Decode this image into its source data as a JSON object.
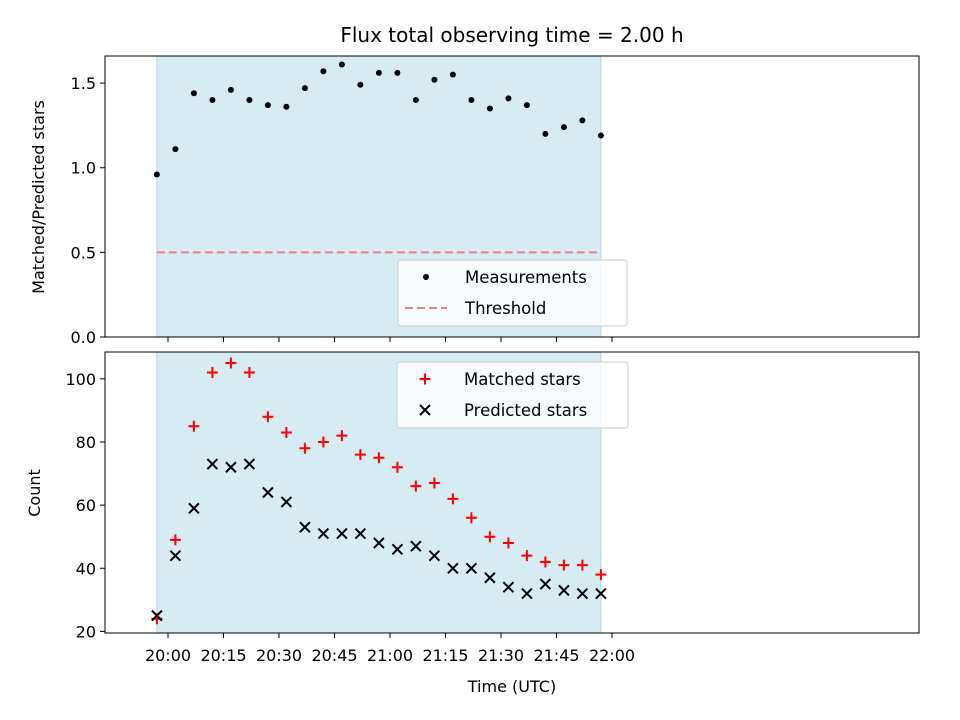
{
  "title": "Flux total observing time = 2.00 h",
  "colors": {
    "shade": "#add8e6",
    "measurement": "#000000",
    "threshold": "#f08080",
    "matched": "#ff0000",
    "predicted": "#000000"
  },
  "chart_data": [
    {
      "type": "scatter",
      "panel": "top",
      "ylabel": "Matched/Predicted stars",
      "ylim": [
        0.0,
        1.66
      ],
      "yticks": [
        "0.0",
        "0.5",
        "1.0",
        "1.5"
      ],
      "x_time_unit": "minutes",
      "shaded_span": [
        "19:57",
        "21:57"
      ],
      "threshold": 0.5,
      "legend_position": "lower center",
      "series": [
        {
          "name": "Measurements",
          "marker": "dot",
          "x": [
            "19:57",
            "20:02",
            "20:07",
            "20:12",
            "20:17",
            "20:22",
            "20:27",
            "20:32",
            "20:37",
            "20:42",
            "20:47",
            "20:52",
            "20:57",
            "21:02",
            "21:07",
            "21:12",
            "21:17",
            "21:22",
            "21:27",
            "21:32",
            "21:37",
            "21:42",
            "21:47",
            "21:52",
            "21:57"
          ],
          "values": [
            0.96,
            1.11,
            1.44,
            1.4,
            1.46,
            1.4,
            1.37,
            1.36,
            1.47,
            1.57,
            1.61,
            1.49,
            1.56,
            1.56,
            1.4,
            1.52,
            1.55,
            1.4,
            1.35,
            1.41,
            1.37,
            1.2,
            1.24,
            1.28,
            1.19
          ]
        },
        {
          "name": "Threshold",
          "marker": "dashed-line",
          "values": [
            0.5
          ]
        }
      ]
    },
    {
      "type": "scatter",
      "panel": "bottom",
      "ylabel": "Count",
      "xlabel": "Time (UTC)",
      "ylim": [
        19.5,
        108.5
      ],
      "yticks": [
        "20",
        "40",
        "60",
        "80",
        "100"
      ],
      "xticks": [
        "20:00",
        "20:15",
        "20:30",
        "20:45",
        "21:00",
        "21:15",
        "21:30",
        "21:45",
        "22:00"
      ],
      "x": [
        "19:57",
        "20:02",
        "20:07",
        "20:12",
        "20:17",
        "20:22",
        "20:27",
        "20:32",
        "20:37",
        "20:42",
        "20:47",
        "20:52",
        "20:57",
        "21:02",
        "21:07",
        "21:12",
        "21:17",
        "21:22",
        "21:27",
        "21:32",
        "21:37",
        "21:42",
        "21:47",
        "21:52",
        "21:57"
      ],
      "shaded_span": [
        "19:57",
        "21:57"
      ],
      "legend_position": "upper center",
      "series": [
        {
          "name": "Matched stars",
          "marker": "plus",
          "values": [
            24,
            49,
            85,
            102,
            105,
            102,
            88,
            83,
            78,
            80,
            82,
            76,
            75,
            72,
            66,
            67,
            62,
            56,
            50,
            48,
            44,
            42,
            41,
            41,
            38
          ]
        },
        {
          "name": "Predicted stars",
          "marker": "x",
          "values": [
            25,
            44,
            59,
            73,
            72,
            73,
            64,
            61,
            53,
            51,
            51,
            51,
            48,
            46,
            47,
            44,
            40,
            40,
            37,
            34,
            32,
            35,
            33,
            32,
            32
          ]
        }
      ]
    }
  ]
}
